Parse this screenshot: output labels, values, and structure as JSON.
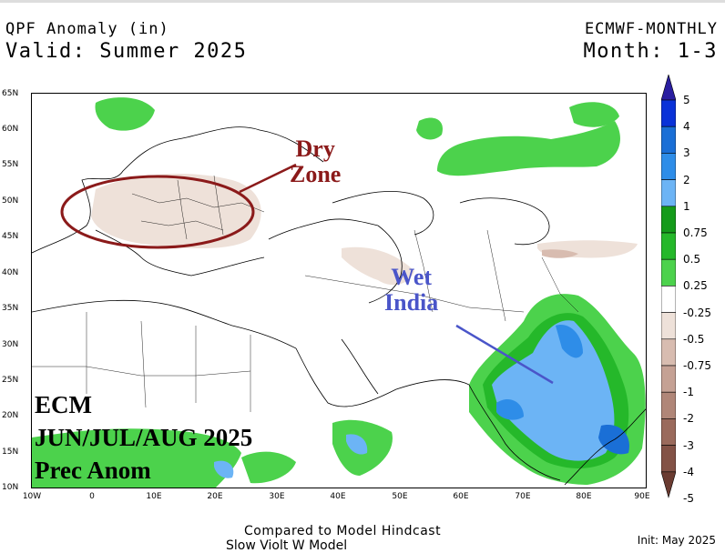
{
  "header": {
    "title": "QPF Anomaly (in)",
    "valid": "Valid: Summer 2025",
    "model": "ECMWF-MONTHLY",
    "month": "Month: 1-3"
  },
  "annotations": {
    "dry_line1": "Dry",
    "dry_line2": "Zone",
    "wet_line1": "Wet",
    "wet_line2": "India"
  },
  "overlay": {
    "line1": "ECM",
    "line2": "JUN/JUL/AUG 2025",
    "line3": "Prec Anom"
  },
  "map": {
    "lat_labels": [
      "65N",
      "60N",
      "55N",
      "50N",
      "45N",
      "40N",
      "35N",
      "30N",
      "25N",
      "20N",
      "15N",
      "10N"
    ],
    "lon_labels": [
      "10W",
      "0",
      "10E",
      "20E",
      "30E",
      "40E",
      "50E",
      "60E",
      "70E",
      "80E",
      "90E"
    ]
  },
  "colorbar": {
    "labels": [
      "5",
      "4",
      "3",
      "2",
      "1",
      "0.75",
      "0.5",
      "0.25",
      "-0.25",
      "-0.5",
      "-0.75",
      "-1",
      "-2",
      "-3",
      "-4",
      "-5"
    ],
    "colors": [
      "#2a1ea0",
      "#0a32d8",
      "#1a6fd6",
      "#2e8de8",
      "#6cb4f5",
      "#149b1b",
      "#25b82a",
      "#4cd24c",
      "#ffffff",
      "#eee1d9",
      "#d8bcb0",
      "#c5a194",
      "#b08678",
      "#9a6a5c",
      "#835246",
      "#6a3b31"
    ]
  },
  "footer": {
    "compared": "Compared to Model Hindcast",
    "source": "Slow Violt W Model",
    "init": "Init: May 2025"
  }
}
